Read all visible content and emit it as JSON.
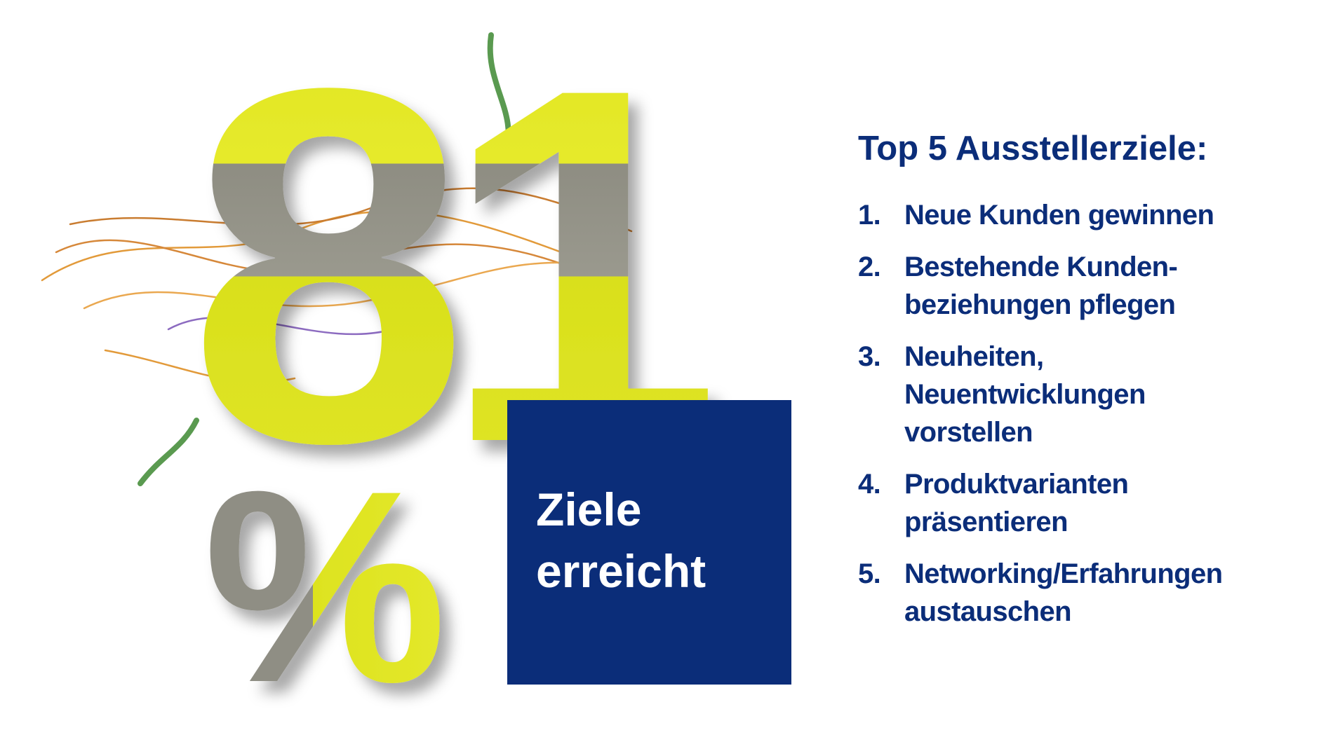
{
  "headline": {
    "number": "81",
    "unit": "%",
    "caption": [
      "Ziele",
      "erreicht"
    ]
  },
  "list": {
    "title": "Top 5 Ausstellerziele:",
    "items": [
      {
        "number": "1.",
        "lines": [
          "Neue Kunden gewinnen"
        ]
      },
      {
        "number": "2.",
        "lines": [
          "Bestehende Kunden-",
          "beziehungen pflegen"
        ]
      },
      {
        "number": "3.",
        "lines": [
          "Neuheiten,",
          "Neuentwicklungen",
          "vorstellen"
        ]
      },
      {
        "number": "4.",
        "lines": [
          "Produktvarianten",
          "präsentieren"
        ]
      },
      {
        "number": "5.",
        "lines": [
          "Networking/Erfahrungen",
          "austauschen"
        ]
      }
    ]
  }
}
